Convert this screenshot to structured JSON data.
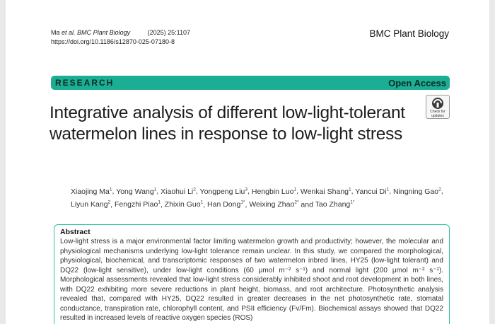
{
  "citation": {
    "authors": "Ma",
    "et_al": "et al.",
    "journal": "BMC Plant Biology",
    "volume": "(2025) 25:1107",
    "doi": "https://doi.org/10.1186/s12870-025-07180-8"
  },
  "journal_brand": "BMC Plant Biology",
  "banner": {
    "section": "RESEARCH",
    "access": "Open Access"
  },
  "badge": {
    "line1": "Check for",
    "line2": "updates"
  },
  "title": "Integrative analysis of different low-light-tolerant watermelon lines in response to low-light stress",
  "authors": [
    {
      "name": "Xiaojing Ma",
      "sup": "1"
    },
    {
      "name": "Yong Wang",
      "sup": "1"
    },
    {
      "name": "Xiaohui Li",
      "sup": "2"
    },
    {
      "name": "Yongpeng Liu",
      "sup": "3"
    },
    {
      "name": "Hengbin Luo",
      "sup": "1"
    },
    {
      "name": "Wenkai Shang",
      "sup": "1"
    },
    {
      "name": "Yancui Di",
      "sup": "1"
    },
    {
      "name": "Ningning Gao",
      "sup": "2"
    },
    {
      "name": "Liyun Kang",
      "sup": "2"
    },
    {
      "name": "Fengzhi Piao",
      "sup": "1"
    },
    {
      "name": "Zhixin Guo",
      "sup": "1"
    },
    {
      "name": "Han Dong",
      "sup": "1*"
    },
    {
      "name": "Weixing Zhao",
      "sup": "2*"
    },
    {
      "name": "Tao Zhang",
      "sup": "1*"
    }
  ],
  "abstract": {
    "heading": "Abstract",
    "text": "Low-light stress is a major environmental factor limiting watermelon growth and productivity; however, the molecular and physiological mechanisms underlying low-light tolerance remain unclear. In this study, we compared the morphological, physiological, biochemical, and transcriptomic responses of two watermelon inbred lines, HY25 (low-light tolerant) and DQ22 (low-light sensitive), under low-light conditions (60 μmol m⁻² s⁻¹) and normal light (200 μmol m⁻² s⁻¹). Morphological assessments revealed that low-light stress considerably inhibited shoot and root development in both lines, with DQ22 exhibiting more severe reductions in plant height, biomass, and root architecture. Photosynthetic analysis revealed that, compared with HY25, DQ22 resulted in greater decreases in the net photosynthetic rate, stomatal conductance, transpiration rate, chlorophyll content, and PSII efficiency (Fv/Fm). Biochemical assays showed that DQ22 resulted in increased levels of reactive oxygen species (ROS)"
  }
}
